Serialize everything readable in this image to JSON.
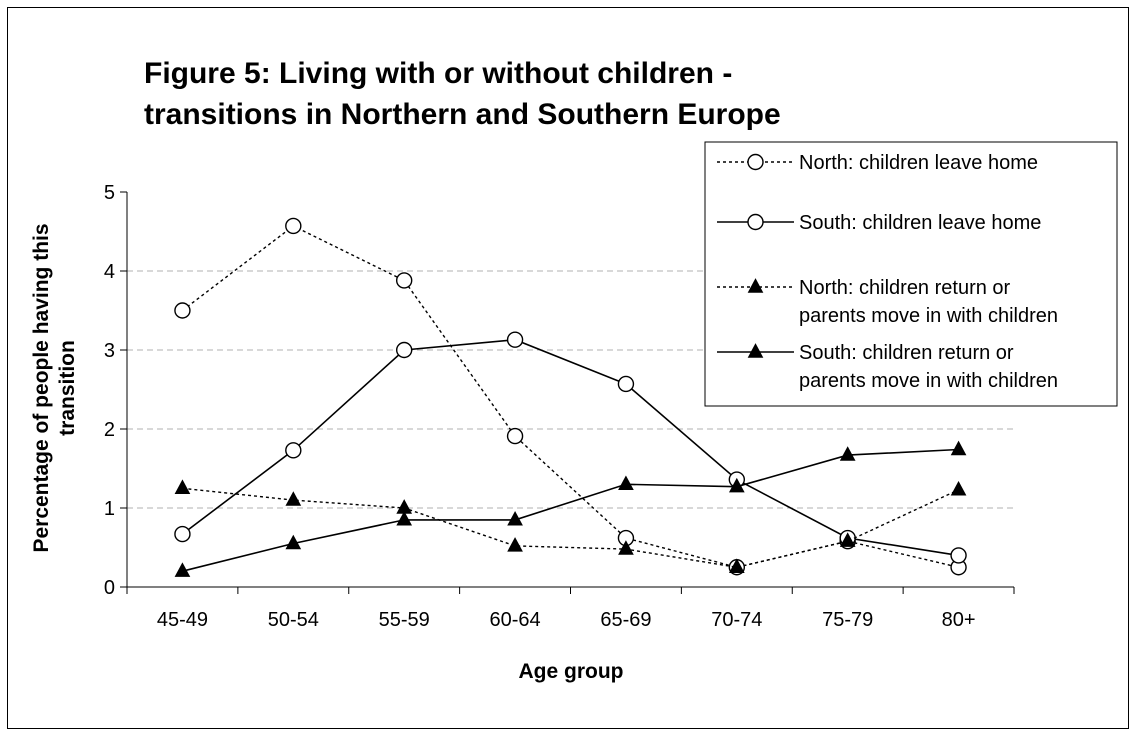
{
  "chart_data": {
    "type": "line",
    "title_lines": [
      "Figure 5: Living with or without children -",
      "transitions in Northern and Southern Europe"
    ],
    "xlabel": "Age group",
    "ylabel_lines": [
      "Percentage of people having this",
      "transition"
    ],
    "categories": [
      "45-49",
      "50-54",
      "55-59",
      "60-64",
      "65-69",
      "70-74",
      "75-79",
      "80+"
    ],
    "ylim": [
      0,
      5
    ],
    "yticks": [
      "0",
      "1",
      "2",
      "3",
      "4",
      "5"
    ],
    "grid": true,
    "legend_position": "top-right",
    "series": [
      {
        "name_lines": [
          "North: children leave home"
        ],
        "values": [
          3.5,
          4.57,
          3.88,
          1.91,
          0.62,
          0.25,
          0.58,
          0.25
        ],
        "line_style": "dotted",
        "marker": "circle"
      },
      {
        "name_lines": [
          "South: children leave home"
        ],
        "values": [
          0.67,
          1.73,
          3.0,
          3.13,
          2.57,
          1.36,
          0.62,
          0.4
        ],
        "line_style": "solid",
        "marker": "circle"
      },
      {
        "name_lines": [
          "North: children return or",
          "parents move in with children"
        ],
        "values": [
          1.25,
          1.1,
          1.0,
          0.52,
          0.48,
          0.25,
          0.58,
          1.23
        ],
        "line_style": "dotted",
        "marker": "triangle"
      },
      {
        "name_lines": [
          "South: children return or",
          "parents move in with children"
        ],
        "values": [
          0.2,
          0.55,
          0.85,
          0.85,
          1.3,
          1.27,
          1.67,
          1.74
        ],
        "line_style": "solid",
        "marker": "triangle"
      }
    ]
  }
}
